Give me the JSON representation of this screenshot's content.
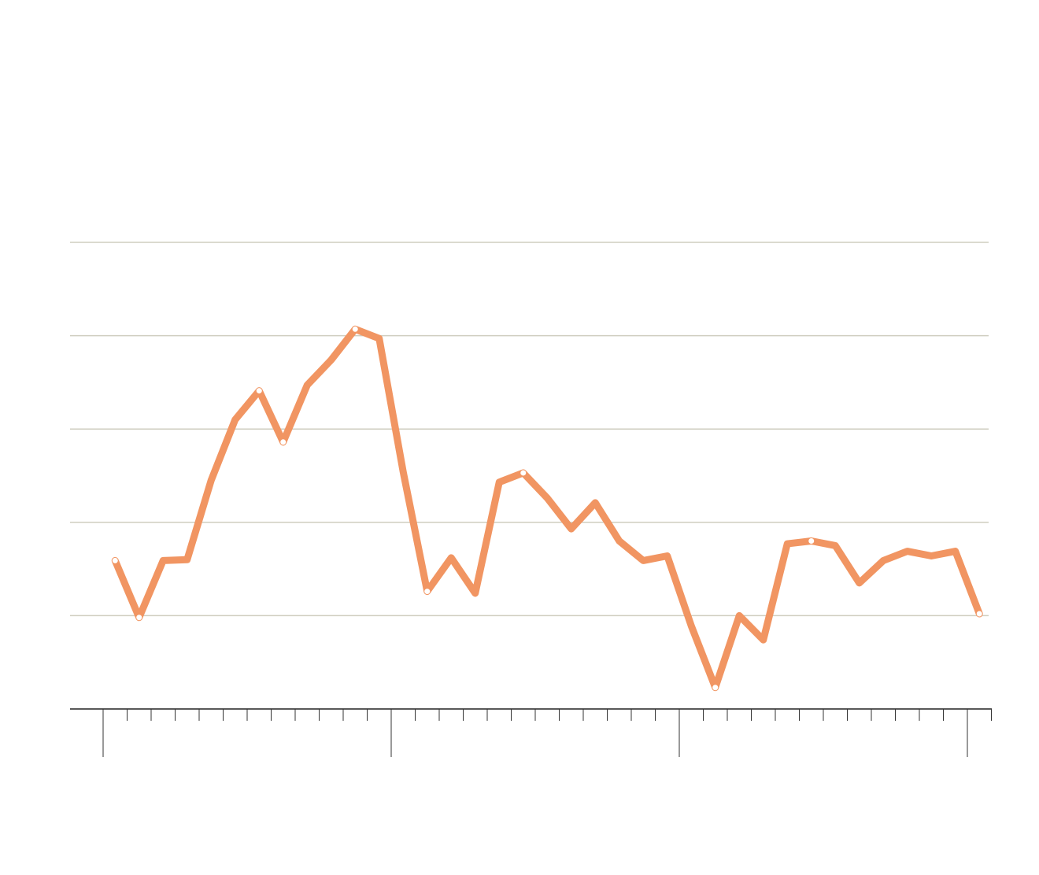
{
  "chart_data": {
    "type": "line",
    "categories": [
      null,
      null,
      null,
      null,
      null,
      null,
      null,
      null,
      null,
      null,
      null,
      null,
      null,
      null,
      null,
      null,
      null,
      null,
      null,
      null,
      null,
      null,
      null,
      null,
      null,
      null,
      null,
      null,
      null,
      null,
      null,
      null,
      null,
      null,
      null,
      null,
      null
    ],
    "series": [
      {
        "color": "#f19562",
        "values": [
          1.59,
          0.98,
          1.59,
          1.6,
          2.45,
          3.1,
          3.41,
          2.86,
          3.47,
          3.74,
          4.07,
          3.97,
          2.54,
          1.26,
          1.62,
          1.24,
          2.43,
          2.53,
          2.26,
          1.93,
          2.21,
          1.8,
          1.59,
          1.64,
          0.89,
          0.23,
          1.0,
          0.74,
          1.77,
          1.8,
          1.75,
          1.35,
          1.59,
          1.69,
          1.64,
          1.69,
          1.02
        ]
      }
    ],
    "ylim": [
      0,
      5
    ],
    "yticks": [
      0,
      1,
      2,
      3,
      4,
      5
    ],
    "grid": true
  }
}
